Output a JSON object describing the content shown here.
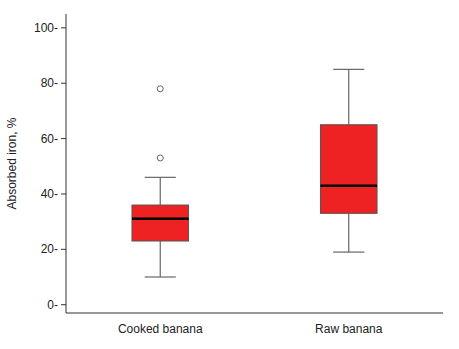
{
  "chart_data": {
    "type": "box",
    "categories": [
      "Cooked banana",
      "Raw banana"
    ],
    "boxes": [
      {
        "whislo": 10,
        "q1": 23,
        "med": 31,
        "q3": 36,
        "whishi": 46,
        "fliers": [
          53,
          78
        ]
      },
      {
        "whislo": 19,
        "q1": 33,
        "med": 43,
        "q3": 65,
        "whishi": 85,
        "fliers": []
      }
    ],
    "color": "#ee2222",
    "ylabel": "Absorbed iron, %",
    "ylim": [
      -3,
      105
    ],
    "yticks": [
      {
        "value": 0,
        "label": "0-"
      },
      {
        "value": 20,
        "label": "20-"
      },
      {
        "value": 40,
        "label": "40-"
      },
      {
        "value": 60,
        "label": "60-"
      },
      {
        "value": 80,
        "label": "80-"
      },
      {
        "value": 100,
        "label": "100-"
      }
    ],
    "grid": false
  }
}
